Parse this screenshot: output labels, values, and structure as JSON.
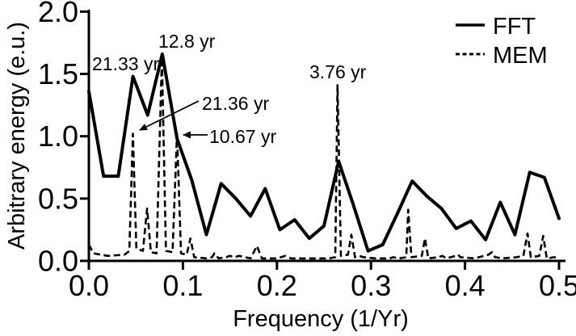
{
  "figure": {
    "background": "#ffffff",
    "ink_color": "#000000"
  },
  "chart_data": {
    "type": "line",
    "title": "",
    "xlabel": "Frequency (1/Yr)",
    "ylabel": "Arbitrary energy (e.u.)",
    "xlim": [
      0,
      0.5
    ],
    "ylim": [
      0,
      2.0
    ],
    "grid": false,
    "legend_position": "top-right",
    "x_ticks": [
      {
        "v": 0.0,
        "label": "0.0"
      },
      {
        "v": 0.1,
        "label": "0.1"
      },
      {
        "v": 0.2,
        "label": "0.2"
      },
      {
        "v": 0.3,
        "label": "0.3"
      },
      {
        "v": 0.4,
        "label": "0.4"
      },
      {
        "v": 0.5,
        "label": "0.5"
      }
    ],
    "y_ticks": [
      {
        "v": 0.0,
        "label": "0.0"
      },
      {
        "v": 0.5,
        "label": "0.5"
      },
      {
        "v": 1.0,
        "label": "1.0"
      },
      {
        "v": 1.5,
        "label": "1.5"
      },
      {
        "v": 2.0,
        "label": "2.0"
      }
    ],
    "series": [
      {
        "name": "FFT",
        "style": "solid",
        "x": [
          0.0,
          0.0156,
          0.0313,
          0.0469,
          0.0625,
          0.0781,
          0.0938,
          0.1094,
          0.125,
          0.1406,
          0.1563,
          0.1719,
          0.1875,
          0.2031,
          0.2188,
          0.2344,
          0.25,
          0.2656,
          0.2813,
          0.2969,
          0.3125,
          0.3281,
          0.3438,
          0.3594,
          0.375,
          0.3906,
          0.4063,
          0.4219,
          0.4375,
          0.4531,
          0.4688,
          0.4844,
          0.5
        ],
        "values": [
          1.36,
          0.68,
          0.68,
          1.48,
          1.17,
          1.66,
          0.98,
          0.65,
          0.21,
          0.62,
          0.5,
          0.36,
          0.58,
          0.25,
          0.33,
          0.18,
          0.28,
          0.8,
          0.45,
          0.08,
          0.13,
          0.38,
          0.64,
          0.52,
          0.42,
          0.26,
          0.32,
          0.17,
          0.47,
          0.21,
          0.71,
          0.67,
          0.34
        ]
      },
      {
        "name": "MEM",
        "style": "dashed",
        "points": [
          [
            0.0,
            0.13
          ],
          [
            0.005,
            0.06
          ],
          [
            0.02,
            0.04
          ],
          [
            0.038,
            0.05
          ],
          [
            0.043,
            0.08
          ],
          [
            0.0468,
            1.02
          ],
          [
            0.0505,
            0.1
          ],
          [
            0.0575,
            0.08
          ],
          [
            0.0619,
            0.42
          ],
          [
            0.066,
            0.07
          ],
          [
            0.072,
            0.06
          ],
          [
            0.0777,
            1.63
          ],
          [
            0.082,
            0.08
          ],
          [
            0.089,
            0.07
          ],
          [
            0.0937,
            1.02
          ],
          [
            0.098,
            0.06
          ],
          [
            0.104,
            0.05
          ],
          [
            0.108,
            0.18
          ],
          [
            0.112,
            0.03
          ],
          [
            0.125,
            0.02
          ],
          [
            0.131,
            0.03
          ],
          [
            0.1335,
            0.06
          ],
          [
            0.138,
            0.02
          ],
          [
            0.146,
            0.03
          ],
          [
            0.15,
            0.04
          ],
          [
            0.155,
            0.03
          ],
          [
            0.16,
            0.04
          ],
          [
            0.166,
            0.03
          ],
          [
            0.172,
            0.02
          ],
          [
            0.1787,
            0.12
          ],
          [
            0.184,
            0.02
          ],
          [
            0.2,
            0.02
          ],
          [
            0.209,
            0.04
          ],
          [
            0.215,
            0.02
          ],
          [
            0.24,
            0.02
          ],
          [
            0.255,
            0.02
          ],
          [
            0.262,
            0.03
          ],
          [
            0.2644,
            1.41
          ],
          [
            0.268,
            0.04
          ],
          [
            0.2755,
            0.05
          ],
          [
            0.2791,
            0.21
          ],
          [
            0.283,
            0.03
          ],
          [
            0.2875,
            0.04
          ],
          [
            0.292,
            0.03
          ],
          [
            0.305,
            0.02
          ],
          [
            0.32,
            0.02
          ],
          [
            0.3235,
            0.03
          ],
          [
            0.33,
            0.02
          ],
          [
            0.3375,
            0.03
          ],
          [
            0.3396,
            0.41
          ],
          [
            0.343,
            0.03
          ],
          [
            0.354,
            0.04
          ],
          [
            0.3574,
            0.18
          ],
          [
            0.361,
            0.02
          ],
          [
            0.372,
            0.03
          ],
          [
            0.376,
            0.04
          ],
          [
            0.38,
            0.02
          ],
          [
            0.39,
            0.04
          ],
          [
            0.3925,
            0.05
          ],
          [
            0.395,
            0.03
          ],
          [
            0.41,
            0.02
          ],
          [
            0.425,
            0.05
          ],
          [
            0.4287,
            0.07
          ],
          [
            0.432,
            0.03
          ],
          [
            0.44,
            0.02
          ],
          [
            0.455,
            0.03
          ],
          [
            0.462,
            0.04
          ],
          [
            0.4665,
            0.22
          ],
          [
            0.47,
            0.03
          ],
          [
            0.479,
            0.04
          ],
          [
            0.4832,
            0.2
          ],
          [
            0.487,
            0.02
          ],
          [
            0.495,
            0.03
          ],
          [
            0.5,
            0.02
          ]
        ]
      }
    ],
    "annotations": [
      {
        "text": "21.33 yr",
        "series": "FFT",
        "freq": 0.0469
      },
      {
        "text": "12.8 yr",
        "series": "FFT",
        "freq": 0.0781
      },
      {
        "text": "3.76 yr",
        "series": "MEM",
        "freq": 0.2656
      },
      {
        "text": "21.36 yr",
        "series": "MEM",
        "freq": 0.0468
      },
      {
        "text": "10.67 yr",
        "series": "MEM",
        "freq": 0.0937
      }
    ],
    "legend": [
      {
        "label": "FFT",
        "style": "solid"
      },
      {
        "label": "MEM",
        "style": "dashed"
      }
    ]
  }
}
